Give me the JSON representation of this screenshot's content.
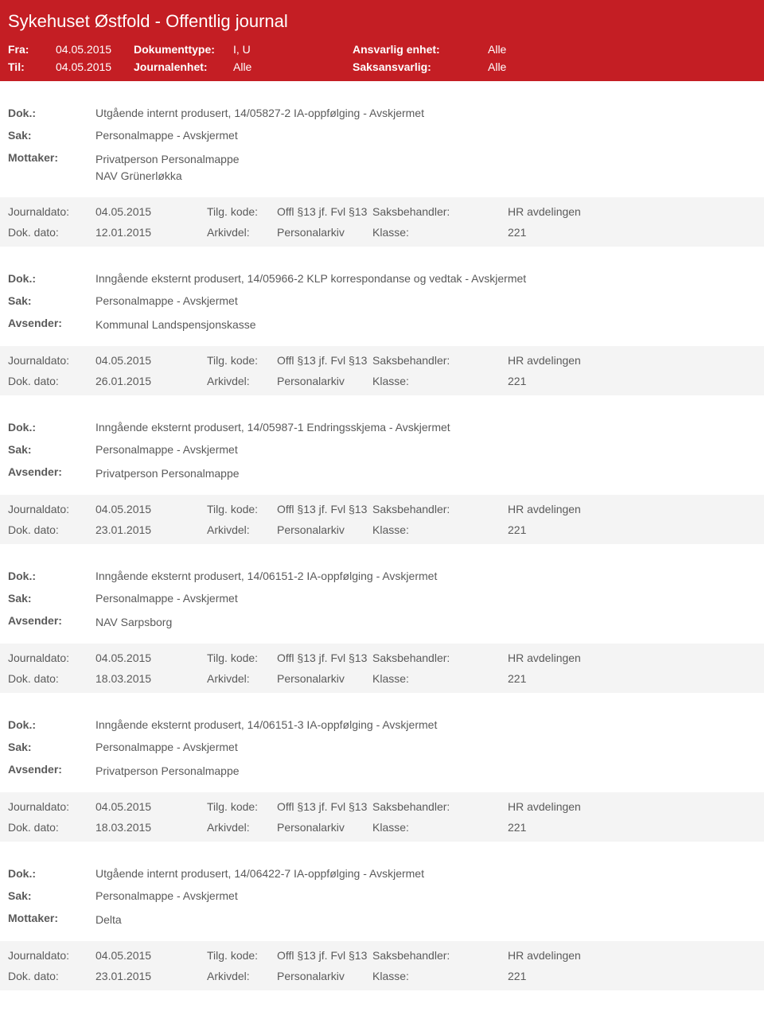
{
  "header": {
    "title": "Sykehuset Østfold - Offentlig journal",
    "fra_label": "Fra:",
    "fra_value": "04.05.2015",
    "til_label": "Til:",
    "til_value": "04.05.2015",
    "dokumenttype_label": "Dokumenttype:",
    "dokumenttype_value": "I, U",
    "journalenhet_label": "Journalenhet:",
    "journalenhet_value": "Alle",
    "ansvarlig_label": "Ansvarlig enhet:",
    "ansvarlig_value": "Alle",
    "saksansvarlig_label": "Saksansvarlig:",
    "saksansvarlig_value": "Alle"
  },
  "labels": {
    "dok": "Dok.:",
    "sak": "Sak:",
    "mottaker": "Mottaker:",
    "avsender": "Avsender:",
    "journaldato": "Journaldato:",
    "dokdato": "Dok. dato:",
    "tilgkode": "Tilg. kode:",
    "arkivdel": "Arkivdel:",
    "saksbehandler": "Saksbehandler:",
    "klasse": "Klasse:"
  },
  "entries": [
    {
      "dok": "Utgående internt produsert, 14/05827-2 IA-oppfølging - Avskjermet",
      "sak": "Personalmappe - Avskjermet",
      "party_label": "Mottaker:",
      "party_line1": "Privatperson Personalmappe",
      "party_line2": "NAV Grünerløkka",
      "journaldato": "04.05.2015",
      "dokdato": "12.01.2015",
      "tilgkode": "Offl §13 jf. Fvl §13",
      "arkivdel": "Personalarkiv",
      "saksbehandler": "HR avdelingen",
      "klasse": "221"
    },
    {
      "dok": "Inngående eksternt produsert, 14/05966-2 KLP korrespondanse og vedtak - Avskjermet",
      "sak": "Personalmappe - Avskjermet",
      "party_label": "Avsender:",
      "party_line1": "Kommunal Landspensjonskasse",
      "party_line2": "",
      "journaldato": "04.05.2015",
      "dokdato": "26.01.2015",
      "tilgkode": "Offl §13 jf. Fvl §13",
      "arkivdel": "Personalarkiv",
      "saksbehandler": "HR avdelingen",
      "klasse": "221"
    },
    {
      "dok": "Inngående eksternt produsert, 14/05987-1 Endringsskjema - Avskjermet",
      "sak": "Personalmappe - Avskjermet",
      "party_label": "Avsender:",
      "party_line1": "Privatperson Personalmappe",
      "party_line2": "",
      "journaldato": "04.05.2015",
      "dokdato": "23.01.2015",
      "tilgkode": "Offl §13 jf. Fvl §13",
      "arkivdel": "Personalarkiv",
      "saksbehandler": "HR avdelingen",
      "klasse": "221"
    },
    {
      "dok": "Inngående eksternt produsert, 14/06151-2 IA-oppfølging - Avskjermet",
      "sak": "Personalmappe - Avskjermet",
      "party_label": "Avsender:",
      "party_line1": "NAV Sarpsborg",
      "party_line2": "",
      "journaldato": "04.05.2015",
      "dokdato": "18.03.2015",
      "tilgkode": "Offl §13 jf. Fvl §13",
      "arkivdel": "Personalarkiv",
      "saksbehandler": "HR avdelingen",
      "klasse": "221"
    },
    {
      "dok": "Inngående eksternt produsert, 14/06151-3 IA-oppfølging - Avskjermet",
      "sak": "Personalmappe - Avskjermet",
      "party_label": "Avsender:",
      "party_line1": "Privatperson Personalmappe",
      "party_line2": "",
      "journaldato": "04.05.2015",
      "dokdato": "18.03.2015",
      "tilgkode": "Offl §13 jf. Fvl §13",
      "arkivdel": "Personalarkiv",
      "saksbehandler": "HR avdelingen",
      "klasse": "221"
    },
    {
      "dok": "Utgående internt produsert, 14/06422-7 IA-oppfølging - Avskjermet",
      "sak": "Personalmappe - Avskjermet",
      "party_label": "Mottaker:",
      "party_line1": "Delta",
      "party_line2": "",
      "journaldato": "04.05.2015",
      "dokdato": "23.01.2015",
      "tilgkode": "Offl §13 jf. Fvl §13",
      "arkivdel": "Personalarkiv",
      "saksbehandler": "HR avdelingen",
      "klasse": "221"
    }
  ]
}
